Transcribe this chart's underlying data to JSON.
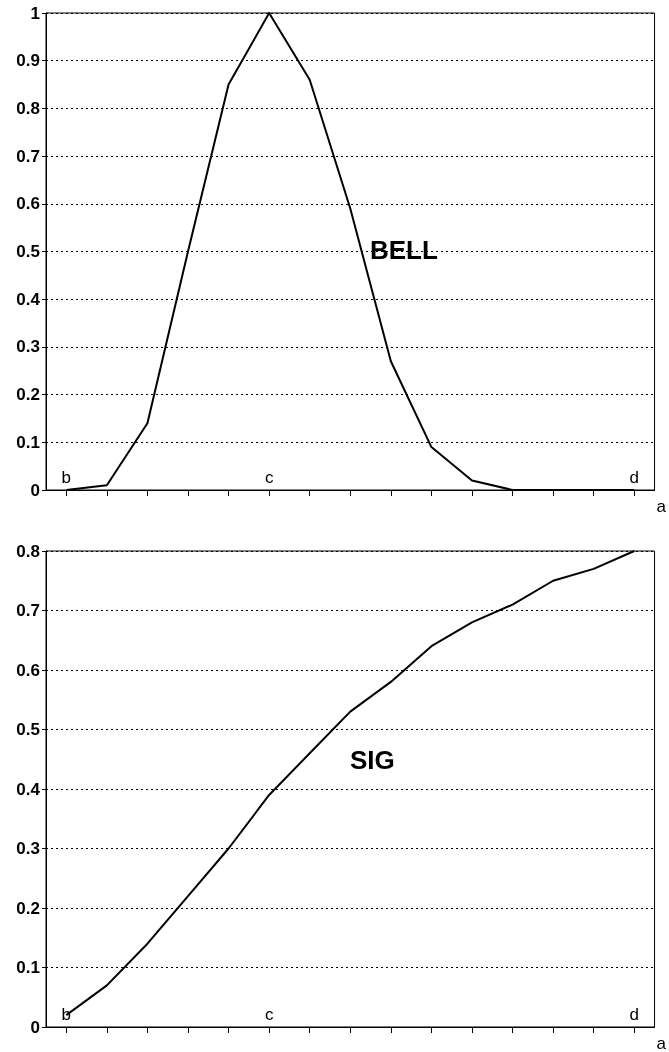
{
  "chart_data": [
    {
      "type": "line",
      "xlabel": "a",
      "annotations": [
        "BELL"
      ],
      "categories": [
        "b",
        null,
        null,
        null,
        null,
        "c",
        null,
        null,
        null,
        null,
        null,
        null,
        null,
        null,
        "d"
      ],
      "values": [
        0,
        0.01,
        0.14,
        0.5,
        0.85,
        1,
        0.86,
        0.59,
        0.27,
        0.09,
        0.02,
        0,
        0,
        0,
        0
      ],
      "color": "#000000",
      "ylim": [
        0,
        1
      ],
      "yticks": [
        0,
        0.1,
        0.2,
        0.3,
        0.4,
        0.5,
        0.6,
        0.7,
        0.8,
        0.9,
        1
      ],
      "grid": "y",
      "marker": "none"
    },
    {
      "type": "line",
      "xlabel": "a",
      "annotations": [
        "SIG"
      ],
      "categories": [
        "b",
        null,
        null,
        null,
        null,
        "c",
        null,
        null,
        null,
        null,
        null,
        null,
        null,
        null,
        "d"
      ],
      "values": [
        0.02,
        0.07,
        0.14,
        0.22,
        0.3,
        0.39,
        0.46,
        0.53,
        0.58,
        0.64,
        0.68,
        0.71,
        0.75,
        0.77,
        0.8
      ],
      "color": "#000000",
      "ylim": [
        0,
        0.8
      ],
      "yticks": [
        0,
        0.1,
        0.2,
        0.3,
        0.4,
        0.5,
        0.6,
        0.7,
        0.8
      ],
      "grid": "y",
      "marker": "none"
    }
  ]
}
